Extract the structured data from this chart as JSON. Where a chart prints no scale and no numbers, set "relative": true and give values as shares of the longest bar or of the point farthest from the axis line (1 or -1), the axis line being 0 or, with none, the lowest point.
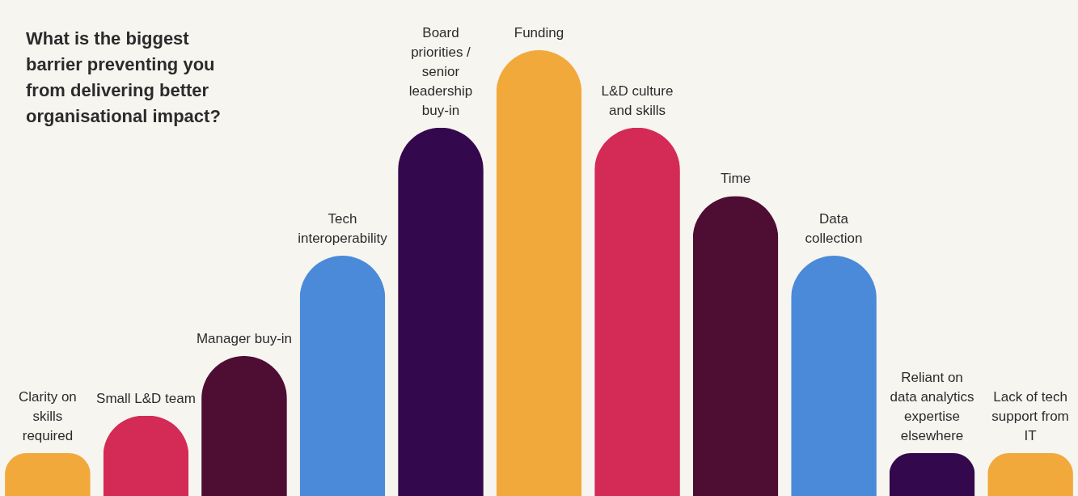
{
  "chart_data": {
    "type": "bar",
    "relative": true,
    "title": "What is the biggest barrier preventing you from delivering better organisational impact?",
    "categories": [
      "Clarity on skills required",
      "Small L&D team",
      "Manager buy-in",
      "Tech interoperability",
      "Board priorities / senior leadership buy-in",
      "Funding",
      "L&D culture and skills",
      "Time",
      "Data collection",
      "Reliant on data analytics expertise elsewhere",
      "Lack of tech support from IT"
    ],
    "values": [
      0.096,
      0.18,
      0.314,
      0.539,
      0.826,
      1,
      0.826,
      0.673,
      0.539,
      0.096,
      0.096
    ],
    "colors": [
      "#f2a93b",
      "#d42a56",
      "#4e0d33",
      "#4a8ad9",
      "#34084c",
      "#f2a93b",
      "#d42a56",
      "#4e0d33",
      "#4a8ad9",
      "#34084c",
      "#f2a93b"
    ]
  }
}
